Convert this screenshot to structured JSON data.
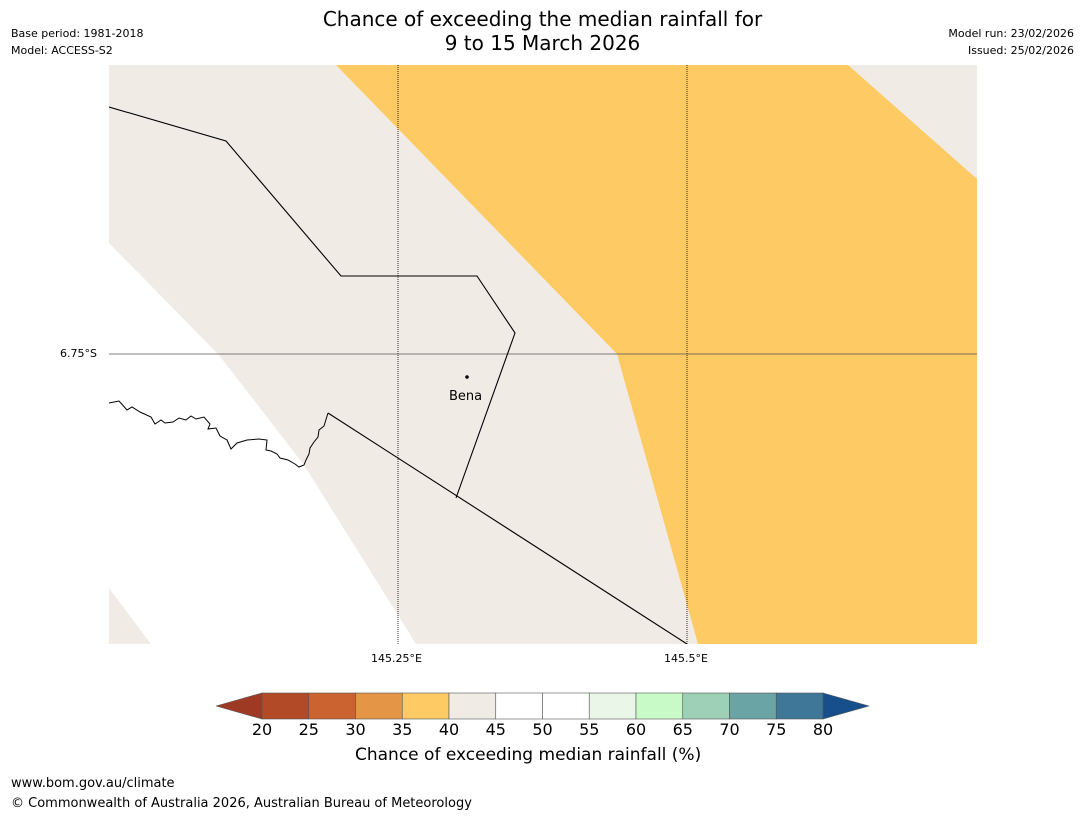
{
  "title": {
    "line1": "Chance of exceeding the median rainfall for",
    "line2": "9 to 15 March 2026"
  },
  "meta": {
    "base_period": "Base period: 1981-2018",
    "model": "Model: ACCESS-S2",
    "model_run": "Model run: 23/02/2026",
    "issued": "Issued: 25/02/2026"
  },
  "map": {
    "lat_label": "6.75°S",
    "lon_labels": [
      "145.25°E",
      "145.5°E"
    ],
    "place_label": "Bena",
    "colors": {
      "band_35_40": "#fdca64",
      "band_40_45": "#f0ebe5",
      "sea": "#ffffff",
      "line": "#000000"
    }
  },
  "colorbar": {
    "ticks": [
      "20",
      "25",
      "30",
      "35",
      "40",
      "45",
      "50",
      "55",
      "60",
      "65",
      "70",
      "75",
      "80"
    ],
    "colors": [
      "#9e3a24",
      "#b24a27",
      "#cb6330",
      "#e49646",
      "#fdca64",
      "#f0ebe5",
      "#ffffff",
      "#ffffff",
      "#eaf7e8",
      "#c8fac8",
      "#9dd0b6",
      "#6ba4a5",
      "#3e7797",
      "#174f8c"
    ],
    "label": "Chance of exceeding median rainfall (%)"
  },
  "footer": {
    "url": "www.bom.gov.au/climate",
    "copyright": "© Commonwealth of Australia 2026, Australian Bureau of Meteorology"
  }
}
